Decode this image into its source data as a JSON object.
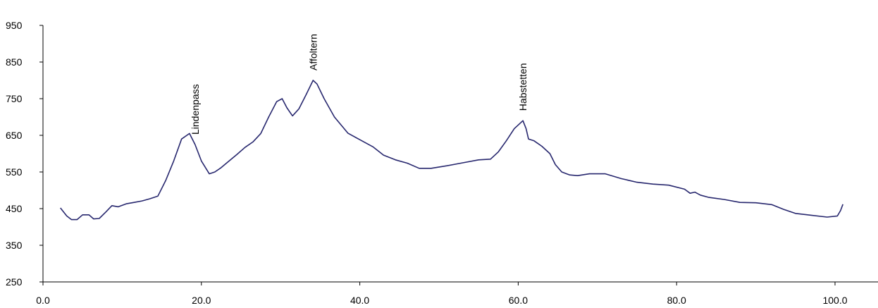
{
  "chart_data": {
    "type": "line",
    "title": "",
    "xlabel": "",
    "ylabel": "",
    "xlim": [
      0,
      112
    ],
    "ylim": [
      250,
      950
    ],
    "grid": false,
    "legend": "none",
    "x_ticks": [
      0,
      20,
      40,
      60,
      80,
      100
    ],
    "x_tick_labels": [
      "0.0",
      "20.0",
      "40.0",
      "60.0",
      "80.0",
      "100.0"
    ],
    "y_ticks": [
      250,
      350,
      450,
      550,
      650,
      750,
      850,
      950
    ],
    "y_tick_labels": [
      "250",
      "350",
      "450",
      "550",
      "650",
      "750",
      "850",
      "950"
    ],
    "line_color": "#27276e",
    "series": [
      {
        "x": [
          2.2,
          3.0,
          3.6,
          4.3,
          5.0,
          5.8,
          6.4,
          7.1,
          7.9,
          8.7,
          9.5,
          10.5,
          11.5,
          12.5,
          13.5,
          14.5,
          15.5,
          16.5,
          17.5,
          18.5,
          19.2,
          20.0,
          21.0,
          21.7,
          22.5,
          23.5,
          24.5,
          25.5,
          26.5,
          27.5,
          28.5,
          29.5,
          30.2,
          30.8,
          31.5,
          32.3,
          33.2,
          34.1,
          34.6,
          35.5,
          36.8,
          38.5,
          40.0,
          41.7,
          43.0,
          44.5,
          46.0,
          47.5,
          49.0,
          51.0,
          53.0,
          55.0,
          56.5,
          57.5,
          58.5,
          59.5,
          60.6,
          61.0,
          61.3,
          62.0,
          63.0,
          64.0,
          64.7,
          65.5,
          66.5,
          67.5,
          69.0,
          71.0,
          73.0,
          75.0,
          77.0,
          79.0,
          81.0,
          81.7,
          82.3,
          83.0,
          84.0,
          86.0,
          88.0,
          90.0,
          92.0,
          93.5,
          95.0,
          97.0,
          99.0,
          100.3,
          100.7,
          101.0
        ],
        "y": [
          452,
          430,
          420,
          420,
          433,
          433,
          422,
          423,
          440,
          458,
          455,
          463,
          467,
          471,
          477,
          484,
          527,
          580,
          640,
          655,
          625,
          580,
          545,
          550,
          562,
          580,
          598,
          617,
          632,
          655,
          700,
          742,
          750,
          725,
          703,
          722,
          760,
          800,
          790,
          750,
          700,
          656,
          638,
          618,
          596,
          583,
          574,
          560,
          560,
          567,
          575,
          583,
          585,
          605,
          635,
          668,
          690,
          668,
          640,
          635,
          620,
          600,
          570,
          550,
          542,
          540,
          545,
          545,
          532,
          522,
          517,
          514,
          503,
          492,
          495,
          487,
          481,
          475,
          467,
          466,
          461,
          448,
          437,
          432,
          427,
          430,
          445,
          462
        ]
      }
    ],
    "annotations": [
      {
        "text": "Lindenpass",
        "x": 19.2
      },
      {
        "text": "Affoltern",
        "x": 34.1
      },
      {
        "text": "Habstetten",
        "x": 60.6
      }
    ]
  }
}
